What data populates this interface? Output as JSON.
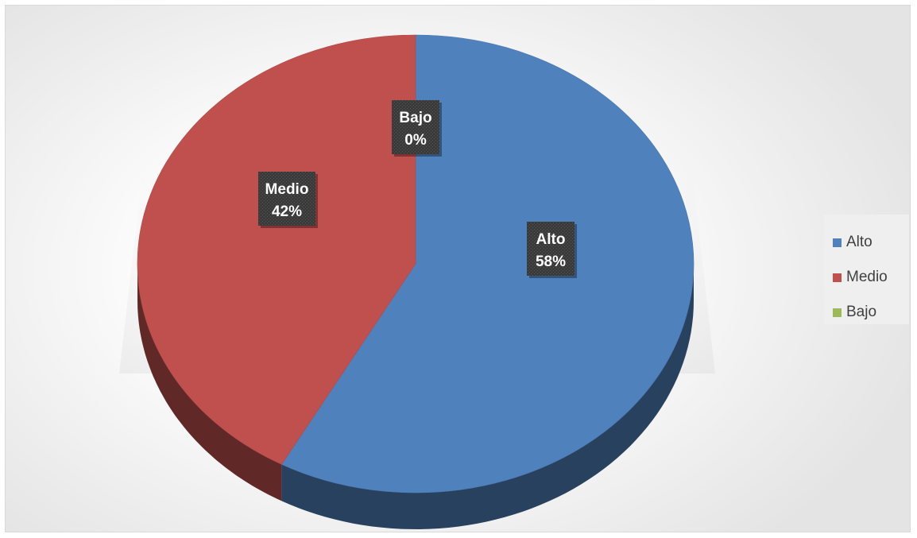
{
  "chart_data": {
    "type": "pie",
    "style": "3d",
    "title": "",
    "categories": [
      "Alto",
      "Medio",
      "Bajo"
    ],
    "values": [
      58,
      42,
      0
    ],
    "value_labels": [
      "58%",
      "42%",
      "0%"
    ],
    "colors": [
      "#4f81bd",
      "#c0504d",
      "#9bbb59"
    ],
    "legend": {
      "position": "right",
      "items": [
        {
          "label": "Alto",
          "color": "#4f81bd"
        },
        {
          "label": "Medio",
          "color": "#c0504d"
        },
        {
          "label": "Bajo",
          "color": "#9bbb59"
        }
      ]
    }
  }
}
